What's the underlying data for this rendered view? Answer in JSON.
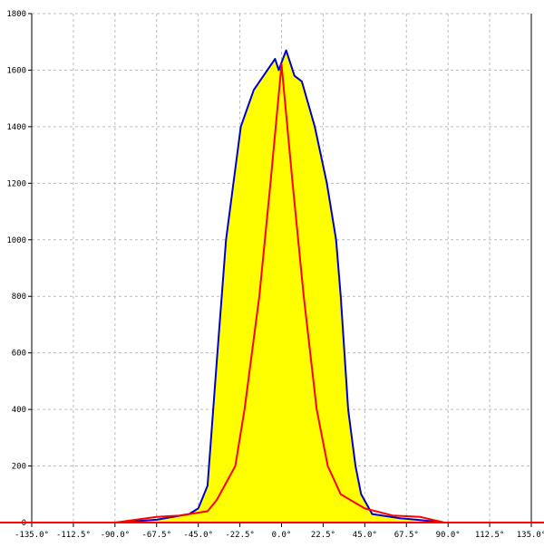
{
  "chart_data": {
    "type": "area",
    "title": "",
    "xlabel": "",
    "ylabel": "",
    "xlim": [
      -135,
      135
    ],
    "ylim": [
      0,
      1800
    ],
    "grid": true,
    "x_ticks": [
      "-135.0°",
      "-112.5°",
      "-90.0°",
      "-67.5°",
      "-45.0°",
      "-22.5°",
      "0.0°",
      "22.5°",
      "45.0°",
      "67.5°",
      "90.0°",
      "112.5°",
      "135.0°"
    ],
    "x_tick_values": [
      -135,
      -112.5,
      -90,
      -67.5,
      -45,
      -22.5,
      0,
      22.5,
      45,
      67.5,
      90,
      112.5,
      135
    ],
    "y_ticks": [
      "0",
      "200",
      "400",
      "600",
      "800",
      "1000",
      "1200",
      "1400",
      "1600",
      "1800"
    ],
    "y_tick_values": [
      0,
      200,
      400,
      600,
      800,
      1000,
      1200,
      1400,
      1600,
      1800
    ],
    "series": [
      {
        "color": "#0000cc",
        "fill": "#ffff00",
        "x": [
          -90,
          -67.5,
          -50,
          -45,
          -40,
          -35,
          -30,
          -22,
          -15,
          -3.5,
          -1.5,
          2.5,
          7,
          11,
          18,
          24.5,
          29.5,
          32,
          36,
          40,
          43,
          49,
          64,
          73,
          88
        ],
        "y": [
          0,
          10,
          30,
          50,
          130,
          570,
          1000,
          1400,
          1530,
          1640,
          1600,
          1670,
          1580,
          1560,
          1400,
          1200,
          1000,
          800,
          400,
          200,
          100,
          30,
          15,
          10,
          0
        ]
      },
      {
        "color": "#ff0000",
        "x": [
          -90,
          -67.5,
          -55,
          -40,
          -35,
          -25,
          -20,
          -12,
          -6,
          0,
          6,
          12,
          19,
          25,
          32,
          45,
          60,
          75,
          88
        ],
        "y": [
          0,
          20,
          25,
          40,
          80,
          200,
          400,
          800,
          1200,
          1620,
          1200,
          800,
          400,
          200,
          100,
          50,
          25,
          20,
          0
        ]
      }
    ]
  }
}
